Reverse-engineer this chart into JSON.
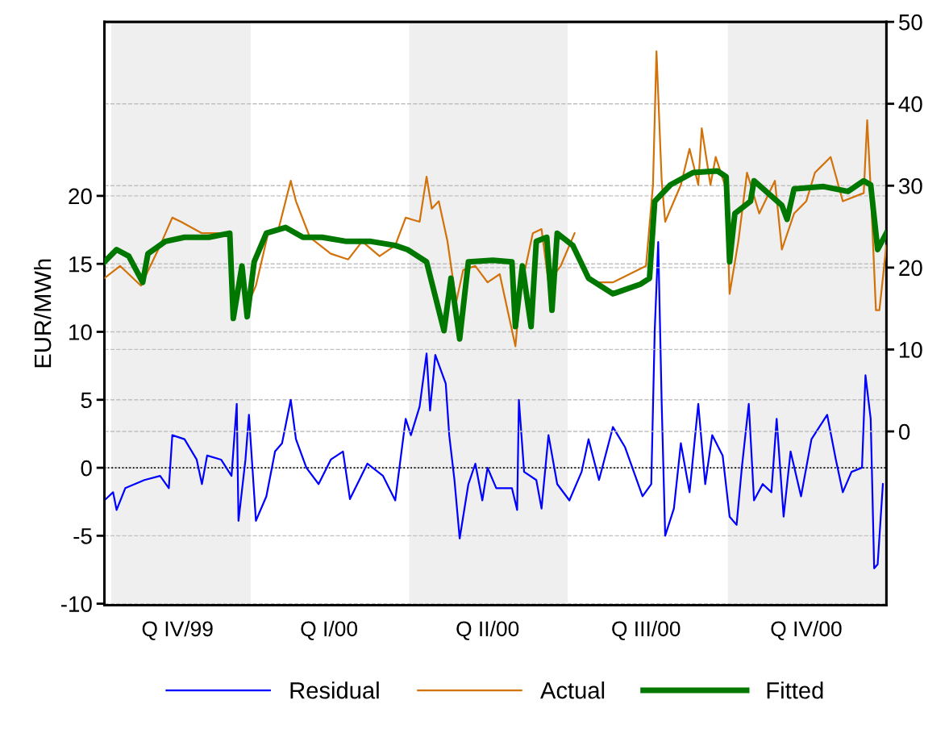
{
  "chart_data": {
    "type": "line",
    "ylabel": "EUR/MWh",
    "xlim": [
      "1999-10-09",
      "2000-12-31"
    ],
    "xticks": [
      {
        "value": "1999-11-20",
        "label": "Q IV/99"
      },
      {
        "value": "2000-02-15",
        "label": "Q I/00"
      },
      {
        "value": "2000-05-16",
        "label": "Q II/00"
      },
      {
        "value": "2000-08-15",
        "label": "Q III/00"
      },
      {
        "value": "2000-11-15",
        "label": "Q IV/00"
      }
    ],
    "ylim": [
      -10.1,
      32.8
    ],
    "yticks": [
      -10,
      -5,
      0,
      5,
      10,
      15,
      20
    ],
    "y2lim": [
      -21.2,
      50
    ],
    "y2ticks": [
      0,
      10,
      20,
      30,
      40,
      50
    ],
    "grid": "y",
    "legend": "bottom",
    "line_style": "solid",
    "marker": "none",
    "bands": [
      {
        "axis": "x",
        "from": "1999-10-13",
        "to": "2000-01-01",
        "color": "#efefef"
      },
      {
        "axis": "x",
        "from": "2000-04-01",
        "to": "2000-07-01",
        "color": "#efefef"
      },
      {
        "axis": "x",
        "from": "2000-10-01",
        "to": "2000-12-31",
        "color": "#efefef"
      }
    ],
    "ref_lines": [
      {
        "axis": "y",
        "value": 0,
        "color": "#000000",
        "line_style": "dotted"
      }
    ],
    "series": [
      {
        "name": "Residual",
        "color": "#0000ff",
        "x": [
          "1999-10-09",
          "1999-10-14",
          "1999-10-16",
          "1999-10-21",
          "1999-11-01",
          "1999-11-10",
          "1999-11-15",
          "1999-11-17",
          "1999-11-24",
          "1999-12-01",
          "1999-12-04",
          "1999-12-07",
          "1999-12-15",
          "1999-12-21",
          "1999-12-24",
          "1999-12-25",
          "1999-12-29",
          "1999-12-31",
          "2000-01-04",
          "2000-01-10",
          "2000-01-15",
          "2000-01-19",
          "2000-01-24",
          "2000-01-27",
          "2000-02-02",
          "2000-02-09",
          "2000-02-16",
          "2000-02-23",
          "2000-02-27",
          "2000-03-08",
          "2000-03-17",
          "2000-03-24",
          "2000-03-30",
          "2000-04-02",
          "2000-04-07",
          "2000-04-11",
          "2000-04-13",
          "2000-04-16",
          "2000-04-22",
          "2000-04-24",
          "2000-04-27",
          "2000-04-30",
          "2000-05-05",
          "2000-05-09",
          "2000-05-13",
          "2000-05-16",
          "2000-05-21",
          "2000-05-30",
          "2000-06-02",
          "2000-06-03",
          "2000-06-06",
          "2000-06-13",
          "2000-06-16",
          "2000-06-20",
          "2000-06-25",
          "2000-07-02",
          "2000-07-09",
          "2000-07-13",
          "2000-07-19",
          "2000-07-27",
          "2000-08-03",
          "2000-08-13",
          "2000-08-18",
          "2000-08-20",
          "2000-08-22",
          "2000-08-24",
          "2000-08-26",
          "2000-08-31",
          "2000-09-04",
          "2000-09-09",
          "2000-09-14",
          "2000-09-18",
          "2000-09-22",
          "2000-09-28",
          "2000-10-02",
          "2000-10-06",
          "2000-10-09",
          "2000-10-13",
          "2000-10-16",
          "2000-10-21",
          "2000-10-26",
          "2000-10-29",
          "2000-11-02",
          "2000-11-06",
          "2000-11-12",
          "2000-11-18",
          "2000-11-27",
          "2000-12-02",
          "2000-12-06",
          "2000-12-11",
          "2000-12-17",
          "2000-12-19",
          "2000-12-22",
          "2000-12-24",
          "2000-12-26",
          "2000-12-29"
        ],
        "values": [
          -2.4,
          -1.8,
          -3.1,
          -1.5,
          -0.9,
          -0.6,
          -1.5,
          2.4,
          2.1,
          0.6,
          -1.2,
          0.9,
          0.6,
          -0.6,
          4.7,
          -3.9,
          0.6,
          3.9,
          -3.9,
          -2.1,
          1.2,
          1.8,
          5.0,
          2.1,
          0,
          -1.2,
          0.6,
          1.2,
          -2.3,
          0.3,
          -0.6,
          -2.4,
          3.6,
          2.4,
          4.5,
          8.4,
          4.2,
          8.3,
          6.2,
          2.4,
          -0.9,
          -5.2,
          -1.2,
          0.3,
          -2.4,
          0,
          -1.5,
          -1.5,
          -3.1,
          5.0,
          -0.3,
          -0.9,
          -3.0,
          2.4,
          -1.2,
          -2.4,
          -0.3,
          2.1,
          -0.9,
          3.0,
          1.5,
          -2.1,
          -1.2,
          10.1,
          16.6,
          4.7,
          -5.0,
          -3.0,
          1.8,
          -1.8,
          4.7,
          -1.2,
          2.4,
          0.9,
          -3.6,
          -4.2,
          0,
          4.7,
          -2.4,
          -1.2,
          -1.8,
          3.6,
          -3.6,
          1.2,
          -2.1,
          2.1,
          3.9,
          0.6,
          -1.8,
          -0.3,
          0,
          6.8,
          3.6,
          -7.4,
          -7.1,
          -1.2
        ]
      },
      {
        "name": "Actual",
        "color": "#d2720a",
        "axis": "y2",
        "x": [
          "1999-10-09",
          "1999-10-18",
          "1999-10-30",
          "1999-11-10",
          "1999-11-17",
          "1999-11-22",
          "1999-12-04",
          "1999-12-18",
          "1999-12-24",
          "1999-12-31",
          "2000-01-04",
          "2000-01-11",
          "2000-01-17",
          "2000-01-24",
          "2000-01-27",
          "2000-02-04",
          "2000-02-16",
          "2000-02-26",
          "2000-03-05",
          "2000-03-15",
          "2000-03-24",
          "2000-03-30",
          "2000-04-07",
          "2000-04-11",
          "2000-04-14",
          "2000-04-18",
          "2000-04-23",
          "2000-04-28",
          "2000-05-02",
          "2000-05-09",
          "2000-05-16",
          "2000-05-23",
          "2000-06-01",
          "2000-06-04",
          "2000-06-11",
          "2000-06-16",
          "2000-06-20",
          "2000-06-27",
          "2000-07-05",
          "2000-07-11",
          "2000-07-18",
          "2000-07-27",
          "2000-08-15",
          "2000-08-19",
          "2000-08-21",
          "2000-08-24",
          "2000-08-26",
          "2000-09-04",
          "2000-09-09",
          "2000-09-14",
          "2000-09-16",
          "2000-09-21",
          "2000-09-24",
          "2000-09-30",
          "2000-10-02",
          "2000-10-07",
          "2000-10-12",
          "2000-10-19",
          "2000-10-28",
          "2000-11-01",
          "2000-11-08",
          "2000-11-15",
          "2000-11-20",
          "2000-11-29",
          "2000-12-06",
          "2000-12-18",
          "2000-12-20",
          "2000-12-22",
          "2000-12-25",
          "2000-12-27",
          "2000-12-31"
        ],
        "values": [
          18.7,
          20.2,
          17.8,
          22.7,
          26.1,
          25.6,
          24.2,
          24.2,
          null,
          15.8,
          17.8,
          24.2,
          24.7,
          30.6,
          28.1,
          23.7,
          21.7,
          21.0,
          23.2,
          21.4,
          22.7,
          26.1,
          25.6,
          31.1,
          27.2,
          28.1,
          23.2,
          15.8,
          19.7,
          20.2,
          18.2,
          19.2,
          10.4,
          17.3,
          24.2,
          24.7,
          18.2,
          20.2,
          24.2,
          null,
          18.2,
          18.2,
          20.2,
          30.1,
          46.4,
          30.6,
          25.6,
          30.1,
          34.5,
          30.1,
          37.0,
          30.1,
          33.5,
          29.6,
          16.8,
          23.2,
          31.6,
          26.6,
          30.6,
          22.2,
          26.6,
          28.1,
          31.6,
          33.5,
          28.1,
          29.1,
          38.0,
          29.6,
          14.8,
          14.8,
          22.7
        ]
      },
      {
        "name": "Fitted",
        "color": "#007800",
        "axis": "y2",
        "x": [
          "1999-10-09",
          "1999-10-16",
          "1999-10-23",
          "1999-10-31",
          "1999-11-03",
          "1999-11-13",
          "1999-11-24",
          "1999-12-08",
          "1999-12-20",
          "1999-12-22",
          "1999-12-27",
          "1999-12-30",
          "2000-01-03",
          "2000-01-10",
          "2000-01-21",
          "2000-01-31",
          "2000-02-11",
          "2000-02-25",
          "2000-03-10",
          "2000-03-24",
          "2000-03-31",
          "2000-04-11",
          "2000-04-21",
          "2000-04-25",
          "2000-04-30",
          "2000-05-05",
          "2000-05-19",
          "2000-05-30",
          "2000-06-01",
          "2000-06-05",
          "2000-06-10",
          "2000-06-13",
          "2000-06-19",
          "2000-06-22",
          "2000-06-25",
          "2000-07-04",
          "2000-07-13",
          "2000-07-27",
          "2000-08-12",
          "2000-08-17",
          "2000-08-20",
          "2000-08-29",
          "2000-09-11",
          "2000-09-25",
          "2000-09-30",
          "2000-10-02",
          "2000-10-05",
          "2000-10-14",
          "2000-10-16",
          "2000-11-01",
          "2000-11-04",
          "2000-11-08",
          "2000-11-25",
          "2000-12-09",
          "2000-12-18",
          "2000-12-22",
          "2000-12-26",
          "2000-12-31"
        ],
        "values": [
          20.7,
          22.2,
          21.4,
          18.2,
          21.7,
          23.2,
          23.7,
          23.7,
          24.2,
          13.8,
          20.2,
          14.0,
          20.7,
          24.2,
          24.9,
          23.7,
          23.7,
          23.2,
          23.2,
          22.7,
          22.2,
          20.7,
          12.3,
          18.7,
          11.3,
          20.7,
          20.9,
          20.7,
          12.8,
          20.2,
          12.8,
          23.2,
          23.7,
          14.8,
          24.2,
          22.7,
          18.7,
          16.8,
          18.0,
          18.7,
          28.1,
          30.1,
          31.6,
          31.8,
          31.1,
          20.7,
          26.6,
          28.1,
          30.6,
          27.6,
          25.9,
          29.6,
          29.9,
          29.3,
          30.6,
          30.1,
          22.2,
          24.2
        ]
      }
    ]
  }
}
